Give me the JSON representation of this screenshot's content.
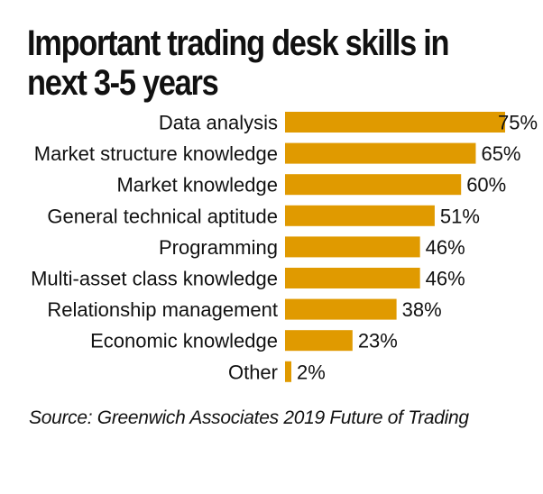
{
  "title": "Important trading desk skills in next 3-5 years",
  "source": "Source: Greenwich Associates 2019 Future of Trading",
  "colors": {
    "bar": "#E09A00",
    "text": "#111111",
    "background": "#FFFFFF"
  },
  "chart_data": {
    "type": "bar",
    "orientation": "horizontal",
    "categories": [
      "Data analysis",
      "Market structure knowledge",
      "Market knowledge",
      "General technical aptitude",
      "Programming",
      "Multi-asset class knowledge",
      "Relationship management",
      "Economic knowledge",
      "Other"
    ],
    "values": [
      75,
      65,
      60,
      51,
      46,
      46,
      38,
      23,
      2
    ],
    "value_labels": [
      "75%",
      "65%",
      "60%",
      "51%",
      "46%",
      "46%",
      "38%",
      "23%",
      "2%"
    ],
    "unit": "%",
    "xlim": [
      0,
      75
    ],
    "grid": false,
    "legend": "none"
  }
}
